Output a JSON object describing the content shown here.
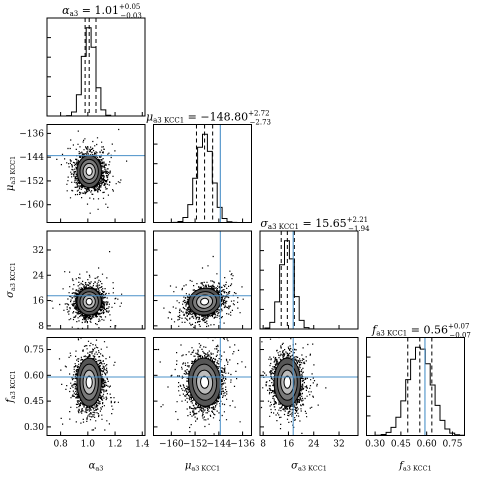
{
  "chart_data": {
    "type": "corner",
    "parameters": [
      {
        "key": "alpha",
        "title": "α_a3 = 1.01 +0.05 −0.03",
        "title_main": "α",
        "title_sub": "a3",
        "title_value": " = 1.01",
        "title_plus": "+0.05",
        "title_minus": "−0.03",
        "axis_label_main": "α",
        "axis_label_sub": "a3",
        "median": 1.01,
        "q16": 0.98,
        "q84": 1.06,
        "truth": null,
        "range": [
          0.7,
          1.42
        ],
        "ticks": [
          0.8,
          1.0,
          1.2,
          1.4
        ],
        "tick_labels": [
          "0.8",
          "1.0",
          "1.2",
          "1.4"
        ],
        "hist_sigma": 0.045
      },
      {
        "key": "mu",
        "title": "μ_a3 KCC1 = −148.80 +2.72 −2.73",
        "title_main": "μ",
        "title_sub": "a3 KCC1",
        "title_value": " = −148.80",
        "title_plus": "+2.72",
        "title_minus": "−2.73",
        "axis_label_main": "μ",
        "axis_label_sub": "a3 KCC1",
        "median": -148.8,
        "q16": -151.53,
        "q84": -146.08,
        "truth": -143.5,
        "range": [
          -166,
          -133
        ],
        "ticks": [
          -160,
          -152,
          -144,
          -136
        ],
        "tick_labels": [
          "−160",
          "−152",
          "−144",
          "−136"
        ],
        "hist_sigma": 2.7
      },
      {
        "key": "sigma",
        "title": "σ_a3 KCC1 = 15.65 +2.21 −1.94",
        "title_main": "σ",
        "title_sub": "a3 KCC1",
        "title_value": " = 15.65",
        "title_plus": "+2.21",
        "title_minus": "−1.94",
        "axis_label_main": "σ",
        "axis_label_sub": "a3 KCC1",
        "median": 15.65,
        "q16": 13.71,
        "q84": 17.86,
        "truth": 17.5,
        "range": [
          7,
          38
        ],
        "ticks": [
          8,
          16,
          24,
          32
        ],
        "tick_labels": [
          "8",
          "16",
          "24",
          "32"
        ],
        "hist_sigma": 2.1
      },
      {
        "key": "f",
        "title": "f_a3 KCC1 = 0.56 +0.07 −0.07",
        "title_main": "f",
        "title_sub": "a3 KCC1",
        "title_value": " = 0.56",
        "title_plus": "+0.07",
        "title_minus": "−0.07",
        "axis_label_main": "f",
        "axis_label_sub": "a3 KCC1",
        "median": 0.56,
        "q16": 0.49,
        "q84": 0.63,
        "truth": 0.59,
        "range": [
          0.25,
          0.82
        ],
        "ticks": [
          0.3,
          0.45,
          0.6,
          0.75
        ],
        "tick_labels": [
          "0.30",
          "0.45",
          "0.60",
          "0.75"
        ],
        "hist_sigma": 0.07
      }
    ],
    "contour_levels_sigma": [
      0.5,
      1.0,
      1.5,
      2.0
    ],
    "grid": false,
    "colors": {
      "axes": "#000000",
      "points": "#000000",
      "contour": "#000000",
      "density_core": "#555555",
      "truth_line": "#4a90c8",
      "background": "#ffffff"
    }
  }
}
